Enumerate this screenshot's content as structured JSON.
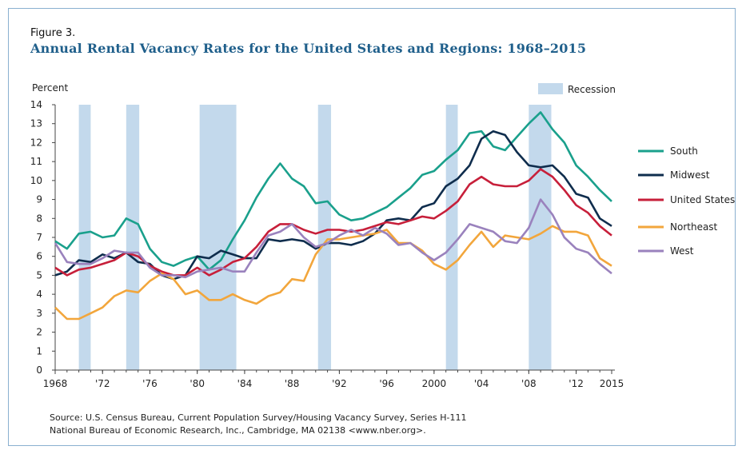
{
  "figure_label": "Figure 3.",
  "title": "Annual Rental Vacancy Rates for the United States and Regions: 1968–2015",
  "source_line1": "Source: U.S. Census Bureau, Current Population Survey/Housing Vacancy Survey, Series H-111",
  "source_line2": "National Bureau of Economic Research, Inc., Cambridge, MA 02138 <www.nber.org>.",
  "chart_data": {
    "type": "line",
    "ylabel": "Percent",
    "ylim": [
      0,
      14
    ],
    "xlim": [
      1968,
      2015
    ],
    "yticks": [
      0,
      1,
      2,
      3,
      4,
      5,
      6,
      7,
      8,
      9,
      10,
      11,
      12,
      13,
      14
    ],
    "xticks": [
      {
        "value": 1968,
        "label": "1968"
      },
      {
        "value": 1972,
        "label": "'72"
      },
      {
        "value": 1976,
        "label": "'76"
      },
      {
        "value": 1980,
        "label": "'80"
      },
      {
        "value": 1984,
        "label": "'84"
      },
      {
        "value": 1988,
        "label": "'88"
      },
      {
        "value": 1992,
        "label": "'92"
      },
      {
        "value": 1996,
        "label": "'96"
      },
      {
        "value": 2000,
        "label": "2000"
      },
      {
        "value": 2004,
        "label": "'04"
      },
      {
        "value": 2008,
        "label": "'08"
      },
      {
        "value": 2012,
        "label": "'12"
      },
      {
        "value": 2015,
        "label": "2015"
      }
    ],
    "recession_label": "Recession",
    "recession_color": "#c3d9ec",
    "recessions": [
      [
        1970.0,
        1971.0
      ],
      [
        1974.0,
        1975.1
      ],
      [
        1980.2,
        1983.3
      ],
      [
        1990.2,
        1991.3
      ],
      [
        2001.0,
        2002.0
      ],
      [
        2008.0,
        2009.9
      ]
    ],
    "x": [
      1968,
      1969,
      1970,
      1971,
      1972,
      1973,
      1974,
      1975,
      1976,
      1977,
      1978,
      1979,
      1980,
      1981,
      1982,
      1983,
      1984,
      1985,
      1986,
      1987,
      1988,
      1989,
      1990,
      1991,
      1992,
      1993,
      1994,
      1995,
      1996,
      1997,
      1998,
      1999,
      2000,
      2001,
      2002,
      2003,
      2004,
      2005,
      2006,
      2007,
      2008,
      2009,
      2010,
      2011,
      2012,
      2013,
      2014,
      2015
    ],
    "series": [
      {
        "name": "South",
        "color": "#1aa08c",
        "values": [
          6.8,
          6.4,
          7.2,
          7.3,
          7.0,
          7.1,
          8.0,
          7.7,
          6.4,
          5.7,
          5.5,
          5.8,
          6.0,
          5.3,
          5.8,
          6.9,
          7.9,
          9.1,
          10.1,
          10.9,
          10.1,
          9.7,
          8.8,
          8.9,
          8.2,
          7.9,
          8.0,
          8.3,
          8.6,
          9.1,
          9.6,
          10.3,
          10.5,
          11.1,
          11.6,
          12.5,
          12.6,
          11.8,
          11.6,
          12.3,
          13.0,
          13.6,
          12.7,
          12.0,
          10.8,
          10.2,
          9.5,
          8.9
        ]
      },
      {
        "name": "Midwest",
        "color": "#0f2d4d",
        "values": [
          5.0,
          5.2,
          5.8,
          5.7,
          6.1,
          5.9,
          6.2,
          5.7,
          5.6,
          5.0,
          4.8,
          5.0,
          6.0,
          5.9,
          6.3,
          6.1,
          5.9,
          5.9,
          6.9,
          6.8,
          6.9,
          6.8,
          6.4,
          6.7,
          6.7,
          6.6,
          6.8,
          7.2,
          7.9,
          8.0,
          7.9,
          8.6,
          8.8,
          9.7,
          10.1,
          10.8,
          12.2,
          12.6,
          12.4,
          11.5,
          10.8,
          10.7,
          10.8,
          10.2,
          9.3,
          9.1,
          8.0,
          7.6
        ]
      },
      {
        "name": "United States",
        "color": "#c71f3a",
        "values": [
          5.4,
          5.0,
          5.3,
          5.4,
          5.6,
          5.8,
          6.2,
          6.0,
          5.5,
          5.2,
          5.0,
          5.0,
          5.4,
          5.0,
          5.3,
          5.7,
          5.9,
          6.5,
          7.3,
          7.7,
          7.7,
          7.4,
          7.2,
          7.4,
          7.4,
          7.3,
          7.4,
          7.6,
          7.8,
          7.7,
          7.9,
          8.1,
          8.0,
          8.4,
          8.9,
          9.8,
          10.2,
          9.8,
          9.7,
          9.7,
          10.0,
          10.6,
          10.2,
          9.5,
          8.7,
          8.3,
          7.6,
          7.1
        ]
      },
      {
        "name": "Northeast",
        "color": "#f2a63c",
        "values": [
          3.3,
          2.7,
          2.7,
          3.0,
          3.3,
          3.9,
          4.2,
          4.1,
          4.7,
          5.1,
          4.8,
          4.0,
          4.2,
          3.7,
          3.7,
          4.0,
          3.7,
          3.5,
          3.9,
          4.1,
          4.8,
          4.7,
          6.1,
          6.9,
          6.9,
          7.0,
          7.1,
          7.2,
          7.4,
          6.7,
          6.7,
          6.3,
          5.6,
          5.3,
          5.8,
          6.6,
          7.3,
          6.5,
          7.1,
          7.0,
          6.9,
          7.2,
          7.6,
          7.3,
          7.3,
          7.1,
          5.9,
          5.5
        ]
      },
      {
        "name": "West",
        "color": "#9a82bd",
        "values": [
          6.7,
          5.7,
          5.6,
          5.6,
          5.9,
          6.3,
          6.2,
          6.2,
          5.4,
          5.0,
          5.0,
          4.9,
          5.2,
          5.3,
          5.4,
          5.2,
          5.2,
          6.2,
          7.1,
          7.3,
          7.7,
          7.0,
          6.5,
          6.7,
          7.1,
          7.4,
          7.1,
          7.5,
          7.2,
          6.6,
          6.7,
          6.2,
          5.8,
          6.2,
          6.9,
          7.7,
          7.5,
          7.3,
          6.8,
          6.7,
          7.5,
          9.0,
          8.2,
          7.0,
          6.4,
          6.2,
          5.6,
          5.1
        ]
      }
    ]
  }
}
